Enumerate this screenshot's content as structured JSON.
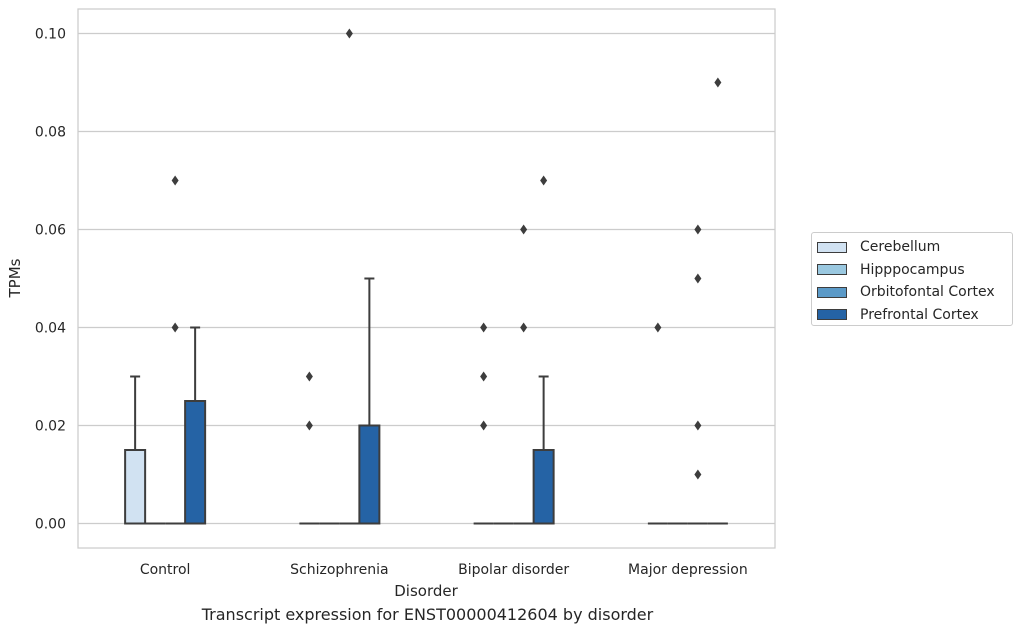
{
  "chart_data": {
    "type": "box",
    "xlabel": "Disorder",
    "ylabel": "TPMs",
    "caption": "Transcript expression for ENST00000412604 by disorder",
    "ylim": [
      -0.005,
      0.105
    ],
    "yticks": [
      0.0,
      0.02,
      0.04,
      0.06,
      0.08,
      0.1
    ],
    "ytick_labels": [
      "0.00",
      "0.02",
      "0.04",
      "0.06",
      "0.08",
      "0.10"
    ],
    "categories": [
      "Control",
      "Schizophrenia",
      "Bipolar disorder",
      "Major depression"
    ],
    "grid": "horizontal",
    "legend_position": "right",
    "series": [
      {
        "name": "Cerebellum",
        "color": "#d1e2f2",
        "boxes": [
          {
            "q1": 0,
            "median": 0,
            "q3": 0.015,
            "whisker_low": 0,
            "whisker_high": 0.03,
            "outliers": []
          },
          {
            "q1": 0,
            "median": 0,
            "q3": 0,
            "whisker_low": 0,
            "whisker_high": 0,
            "outliers": [
              0.02,
              0.03
            ]
          },
          {
            "q1": 0,
            "median": 0,
            "q3": 0,
            "whisker_low": 0,
            "whisker_high": 0,
            "outliers": [
              0.02,
              0.03,
              0.04
            ]
          },
          {
            "q1": 0,
            "median": 0,
            "q3": 0,
            "whisker_low": 0,
            "whisker_high": 0,
            "outliers": [
              0.04
            ]
          }
        ]
      },
      {
        "name": "Hipppocampus",
        "color": "#9ac8e0",
        "boxes": [
          {
            "q1": 0,
            "median": 0,
            "q3": 0,
            "whisker_low": 0,
            "whisker_high": 0,
            "outliers": []
          },
          {
            "q1": 0,
            "median": 0,
            "q3": 0,
            "whisker_low": 0,
            "whisker_high": 0,
            "outliers": []
          },
          {
            "q1": 0,
            "median": 0,
            "q3": 0,
            "whisker_low": 0,
            "whisker_high": 0,
            "outliers": []
          },
          {
            "q1": 0,
            "median": 0,
            "q3": 0,
            "whisker_low": 0,
            "whisker_high": 0,
            "outliers": []
          }
        ]
      },
      {
        "name": "Orbitofontal Cortex",
        "color": "#5b9ac8",
        "boxes": [
          {
            "q1": 0,
            "median": 0,
            "q3": 0,
            "whisker_low": 0,
            "whisker_high": 0,
            "outliers": [
              0.04,
              0.07
            ]
          },
          {
            "q1": 0,
            "median": 0,
            "q3": 0,
            "whisker_low": 0,
            "whisker_high": 0,
            "outliers": [
              0.1
            ]
          },
          {
            "q1": 0,
            "median": 0,
            "q3": 0,
            "whisker_low": 0,
            "whisker_high": 0,
            "outliers": [
              0.04,
              0.06
            ]
          },
          {
            "q1": 0,
            "median": 0,
            "q3": 0,
            "whisker_low": 0,
            "whisker_high": 0,
            "outliers": [
              0.05,
              0.06,
              0.02,
              0.01
            ]
          }
        ]
      },
      {
        "name": "Prefrontal Cortex",
        "color": "#2563a5",
        "boxes": [
          {
            "q1": 0,
            "median": 0,
            "q3": 0.025,
            "whisker_low": 0,
            "whisker_high": 0.04,
            "outliers": []
          },
          {
            "q1": 0,
            "median": 0,
            "q3": 0.02,
            "whisker_low": 0,
            "whisker_high": 0.05,
            "outliers": []
          },
          {
            "q1": 0,
            "median": 0,
            "q3": 0.015,
            "whisker_low": 0,
            "whisker_high": 0.03,
            "outliers": [
              0.07
            ]
          },
          {
            "q1": 0,
            "median": 0,
            "q3": 0,
            "whisker_low": 0,
            "whisker_high": 0,
            "outliers": [
              0.09
            ]
          }
        ]
      }
    ]
  }
}
